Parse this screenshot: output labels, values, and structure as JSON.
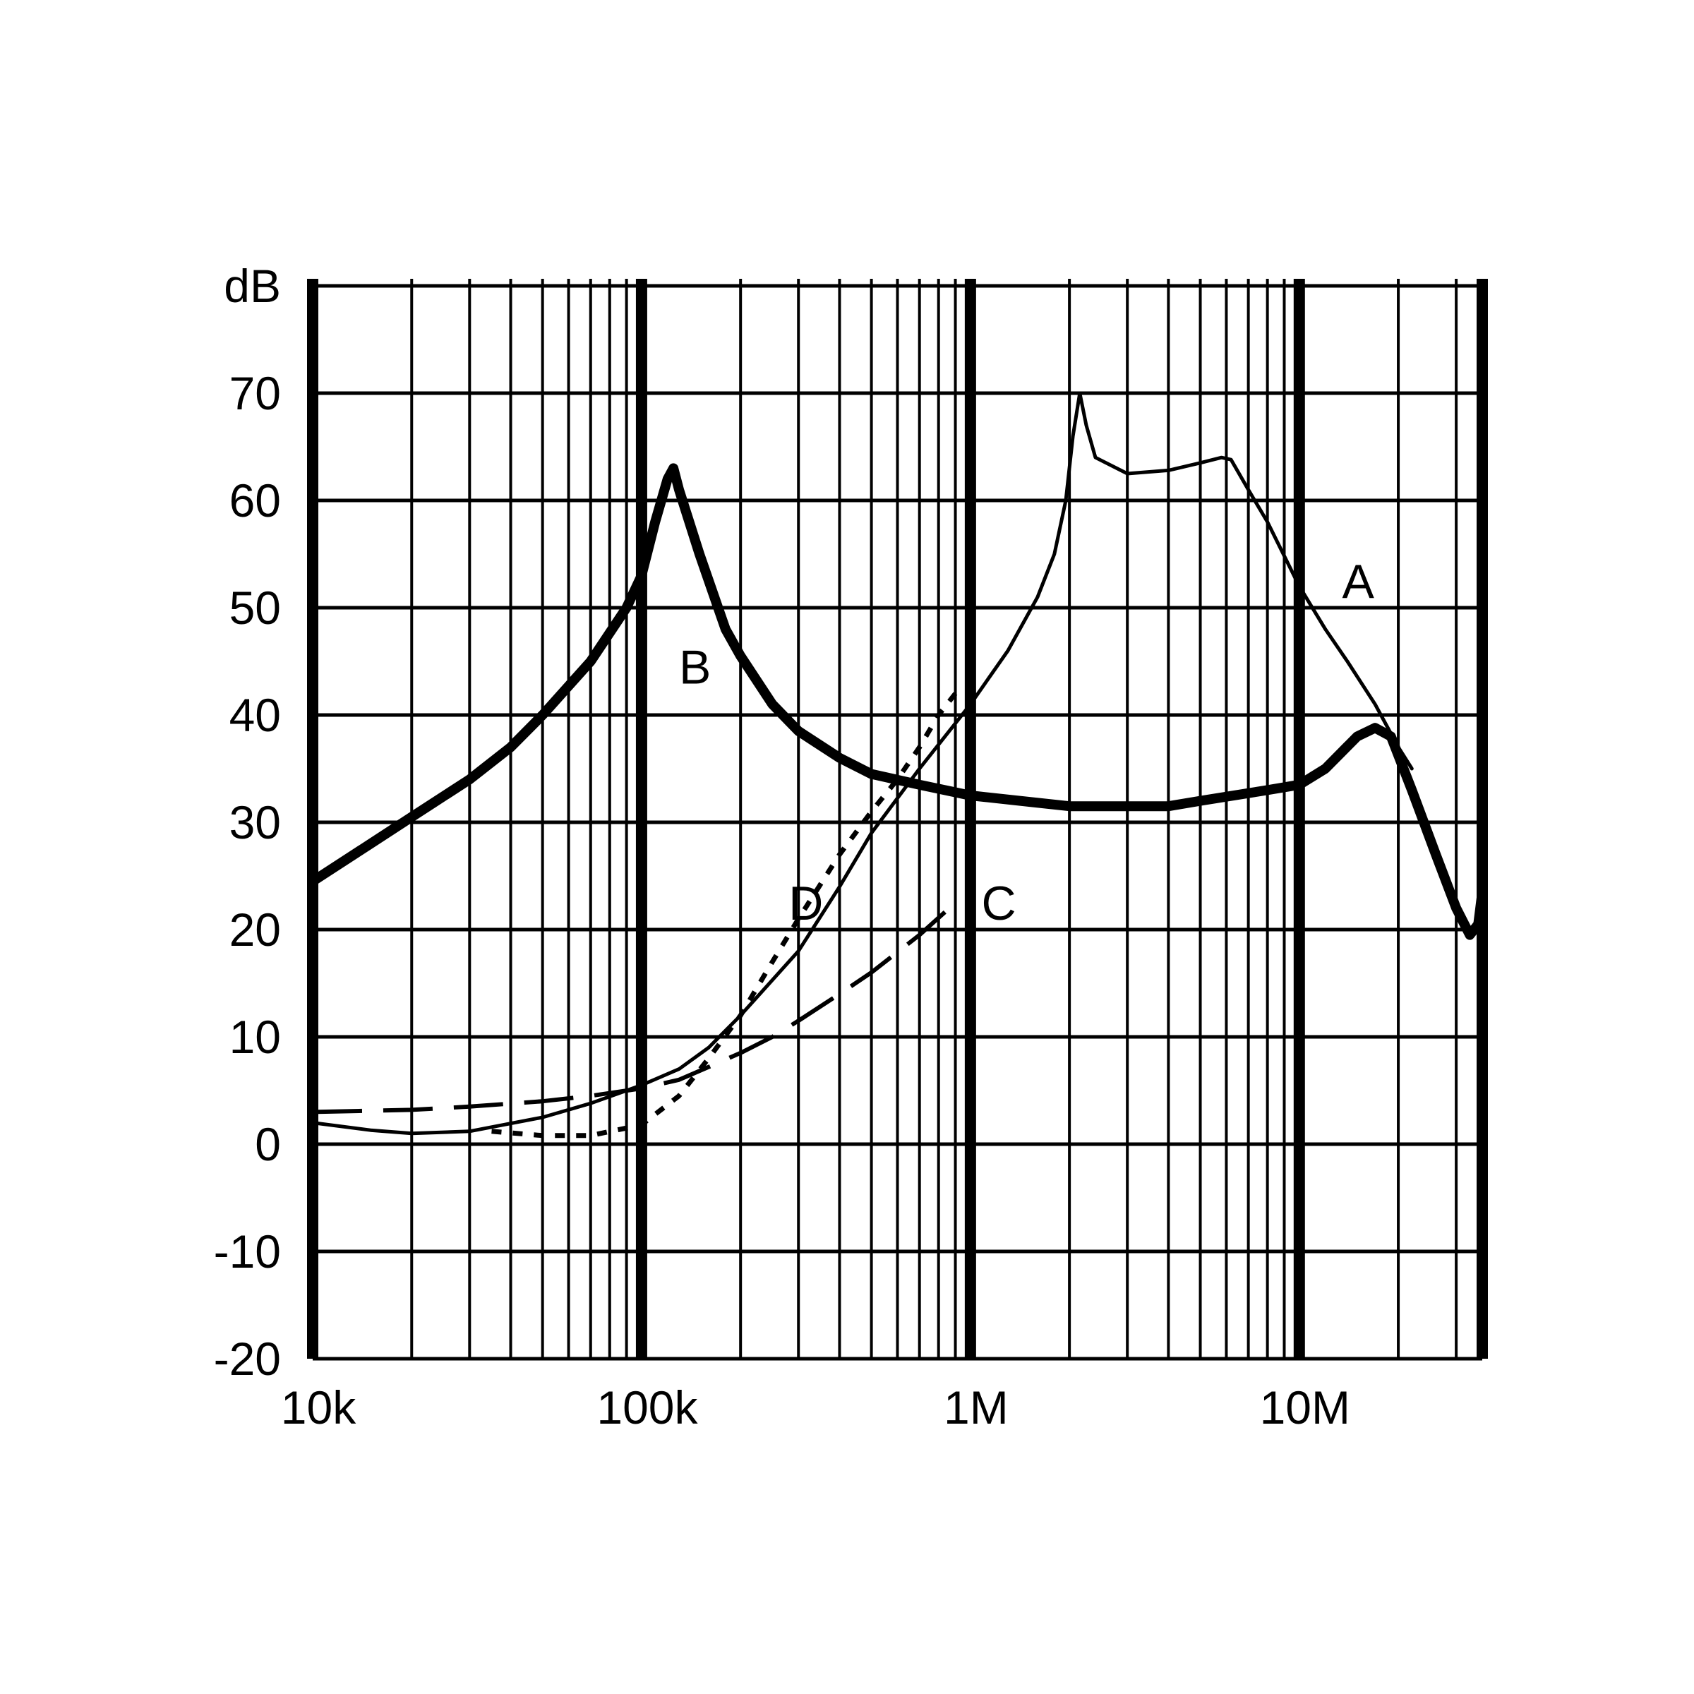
{
  "chart_data": {
    "type": "line",
    "title": "",
    "xlabel": "",
    "ylabel": "dB",
    "x_scale": "log",
    "xlim": [
      10000,
      36000000
    ],
    "ylim": [
      -20,
      80
    ],
    "grid": true,
    "x_ticks": [
      {
        "value": 10000,
        "label": "10k"
      },
      {
        "value": 100000,
        "label": "100k"
      },
      {
        "value": 1000000,
        "label": "1M"
      },
      {
        "value": 10000000,
        "label": "10M"
      }
    ],
    "y_ticks": [
      {
        "value": 80,
        "label": "dB"
      },
      {
        "value": 70,
        "label": "70"
      },
      {
        "value": 60,
        "label": "60"
      },
      {
        "value": 50,
        "label": "50"
      },
      {
        "value": 40,
        "label": "40"
      },
      {
        "value": 30,
        "label": "30"
      },
      {
        "value": 20,
        "label": "20"
      },
      {
        "value": 10,
        "label": "10"
      },
      {
        "value": 0,
        "label": "0"
      },
      {
        "value": -10,
        "label": "-10"
      },
      {
        "value": -20,
        "label": "-20"
      }
    ],
    "series": [
      {
        "name": "A",
        "style": "thin",
        "label_point": [
          13500000,
          52.5
        ],
        "points": [
          [
            10000,
            2
          ],
          [
            15000,
            1.3
          ],
          [
            20000,
            1
          ],
          [
            30000,
            1.2
          ],
          [
            50000,
            2.5
          ],
          [
            70000,
            3.8
          ],
          [
            100000,
            5.5
          ],
          [
            130000,
            7
          ],
          [
            160000,
            9
          ],
          [
            200000,
            12
          ],
          [
            300000,
            18
          ],
          [
            400000,
            24
          ],
          [
            500000,
            29
          ],
          [
            700000,
            35
          ],
          [
            1000000,
            41
          ],
          [
            1300000,
            46
          ],
          [
            1600000,
            51
          ],
          [
            1800000,
            55
          ],
          [
            1950000,
            60
          ],
          [
            2050000,
            66
          ],
          [
            2150000,
            70
          ],
          [
            2250000,
            67
          ],
          [
            2400000,
            64
          ],
          [
            3000000,
            62.5
          ],
          [
            4000000,
            62.8
          ],
          [
            5000000,
            63.5
          ],
          [
            5800000,
            64
          ],
          [
            6200000,
            63.8
          ],
          [
            7000000,
            61
          ],
          [
            8000000,
            58
          ],
          [
            10000000,
            52
          ],
          [
            12000000,
            48
          ],
          [
            14000000,
            45
          ],
          [
            17000000,
            41
          ],
          [
            20000000,
            37
          ],
          [
            22000000,
            35
          ]
        ]
      },
      {
        "name": "B",
        "style": "thick",
        "label_point": [
          130000,
          44.5
        ],
        "points": [
          [
            10000,
            24.5
          ],
          [
            15000,
            28
          ],
          [
            20000,
            30.5
          ],
          [
            30000,
            34
          ],
          [
            40000,
            37
          ],
          [
            50000,
            40
          ],
          [
            70000,
            45
          ],
          [
            90000,
            50
          ],
          [
            100000,
            53
          ],
          [
            110000,
            58
          ],
          [
            120000,
            62
          ],
          [
            125000,
            63
          ],
          [
            130000,
            61
          ],
          [
            150000,
            55
          ],
          [
            180000,
            48
          ],
          [
            200000,
            45.5
          ],
          [
            250000,
            41
          ],
          [
            300000,
            38.5
          ],
          [
            400000,
            36
          ],
          [
            500000,
            34.5
          ],
          [
            700000,
            33.5
          ],
          [
            1000000,
            32.5
          ],
          [
            2000000,
            31.5
          ],
          [
            3000000,
            31.5
          ],
          [
            4000000,
            31.5
          ],
          [
            5000000,
            32
          ],
          [
            8000000,
            33
          ],
          [
            10000000,
            33.5
          ],
          [
            12000000,
            35
          ],
          [
            15000000,
            38
          ],
          [
            17000000,
            38.8
          ],
          [
            19000000,
            38
          ],
          [
            22000000,
            33
          ],
          [
            26000000,
            27
          ],
          [
            30000000,
            22
          ],
          [
            33000000,
            19.5
          ],
          [
            35000000,
            20.5
          ],
          [
            36000000,
            23.5
          ]
        ]
      },
      {
        "name": "C",
        "style": "dashed",
        "label_point": [
          1080000,
          22.5
        ],
        "points": [
          [
            10000,
            3
          ],
          [
            20000,
            3.2
          ],
          [
            30000,
            3.5
          ],
          [
            50000,
            4
          ],
          [
            70000,
            4.5
          ],
          [
            100000,
            5.2
          ],
          [
            130000,
            6
          ],
          [
            160000,
            7.2
          ],
          [
            200000,
            8.5
          ],
          [
            250000,
            10
          ],
          [
            300000,
            11.5
          ],
          [
            400000,
            14
          ],
          [
            500000,
            16
          ],
          [
            700000,
            19.5
          ],
          [
            900000,
            22.5
          ]
        ]
      },
      {
        "name": "D",
        "style": "dotted",
        "label_point": [
          280000,
          22.5
        ],
        "points": [
          [
            35000,
            1.2
          ],
          [
            50000,
            0.8
          ],
          [
            70000,
            0.8
          ],
          [
            100000,
            1.8
          ],
          [
            130000,
            4.5
          ],
          [
            160000,
            8
          ],
          [
            200000,
            12
          ],
          [
            250000,
            17
          ],
          [
            300000,
            21
          ],
          [
            400000,
            27
          ],
          [
            500000,
            31
          ],
          [
            600000,
            34
          ],
          [
            700000,
            37
          ],
          [
            800000,
            40
          ],
          [
            900000,
            42
          ]
        ]
      }
    ]
  }
}
